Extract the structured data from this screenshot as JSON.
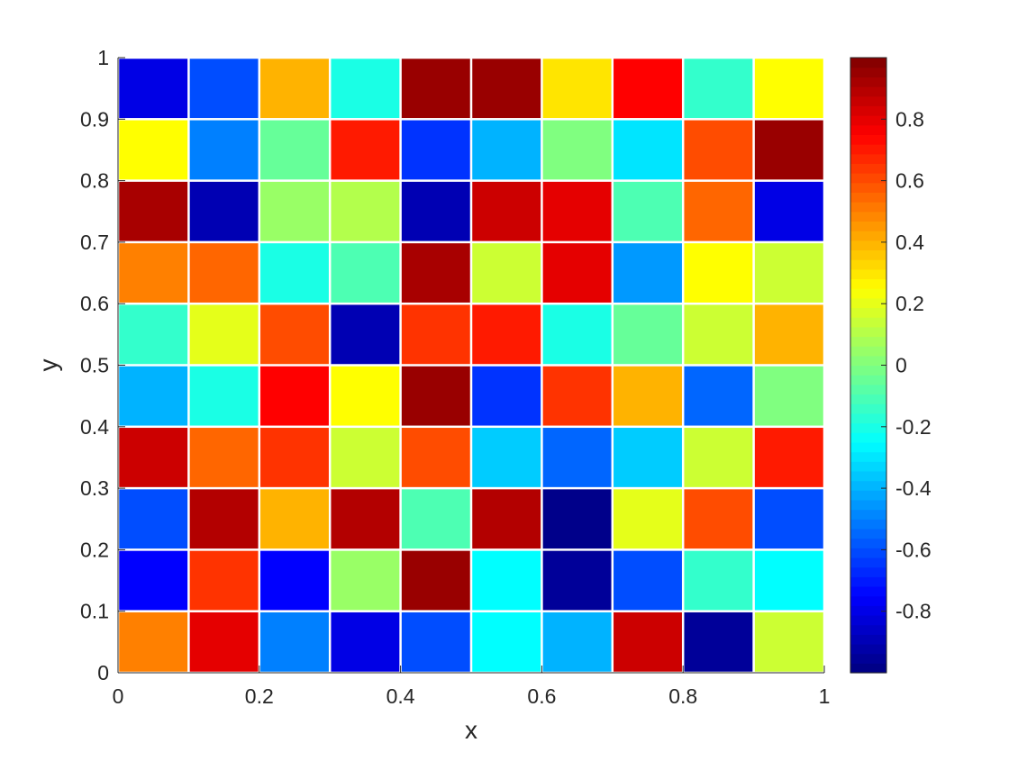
{
  "chart_data": {
    "type": "heatmap",
    "title": "",
    "xlabel": "x",
    "ylabel": "y",
    "xlim": [
      0,
      1
    ],
    "ylim": [
      0,
      1
    ],
    "x_ticks": [
      0,
      0.2,
      0.4,
      0.6,
      0.8,
      1
    ],
    "x_tick_labels": [
      "0",
      "0.2",
      "0.4",
      "0.6",
      "0.8",
      "1"
    ],
    "y_ticks": [
      0,
      0.1,
      0.2,
      0.3,
      0.4,
      0.5,
      0.6,
      0.7,
      0.8,
      0.9,
      1
    ],
    "y_tick_labels": [
      "0",
      "0.1",
      "0.2",
      "0.3",
      "0.4",
      "0.5",
      "0.6",
      "0.7",
      "0.8",
      "0.9",
      "1"
    ],
    "colorbar": {
      "colormap": "jet",
      "range": [
        -1,
        1
      ],
      "ticks": [
        -0.8,
        -0.6,
        -0.4,
        -0.2,
        0,
        0.2,
        0.4,
        0.6,
        0.8
      ],
      "tick_labels": [
        "-0.8",
        "-0.6",
        "-0.4",
        "-0.2",
        "0",
        "0.2",
        "0.4",
        "0.6",
        "0.8"
      ]
    },
    "grid": false,
    "cell_gap_color": "#ffffff",
    "n_cols": 10,
    "n_rows": 10,
    "cell_width": 0.1,
    "cell_height": 0.1,
    "values_rows_top_to_bottom": [
      [
        -0.8,
        -0.6,
        0.4,
        -0.2,
        0.95,
        0.95,
        0.3,
        0.75,
        -0.15,
        0.25
      ],
      [
        0.25,
        -0.5,
        -0.05,
        0.7,
        -0.65,
        -0.4,
        0.0,
        -0.3,
        0.6,
        0.95
      ],
      [
        0.92,
        -0.9,
        0.05,
        0.1,
        -0.9,
        0.85,
        0.8,
        -0.1,
        0.55,
        -0.8
      ],
      [
        0.5,
        0.55,
        -0.2,
        -0.1,
        0.92,
        0.15,
        0.8,
        -0.45,
        0.25,
        0.15
      ],
      [
        -0.15,
        0.2,
        0.6,
        -0.9,
        0.65,
        0.7,
        -0.2,
        -0.05,
        0.15,
        0.4
      ],
      [
        -0.4,
        -0.2,
        0.75,
        0.25,
        0.95,
        -0.65,
        0.65,
        0.4,
        -0.55,
        0.0
      ],
      [
        0.85,
        0.55,
        0.65,
        0.15,
        0.6,
        -0.35,
        -0.55,
        -0.35,
        0.15,
        0.7
      ],
      [
        -0.6,
        0.9,
        0.4,
        0.9,
        -0.1,
        0.9,
        -0.98,
        0.2,
        0.6,
        -0.6
      ],
      [
        -0.75,
        0.65,
        -0.75,
        0.05,
        0.95,
        -0.25,
        -0.95,
        -0.6,
        -0.15,
        -0.25
      ],
      [
        0.5,
        0.8,
        -0.5,
        -0.8,
        -0.6,
        -0.25,
        -0.4,
        0.85,
        -0.95,
        0.15
      ]
    ]
  }
}
